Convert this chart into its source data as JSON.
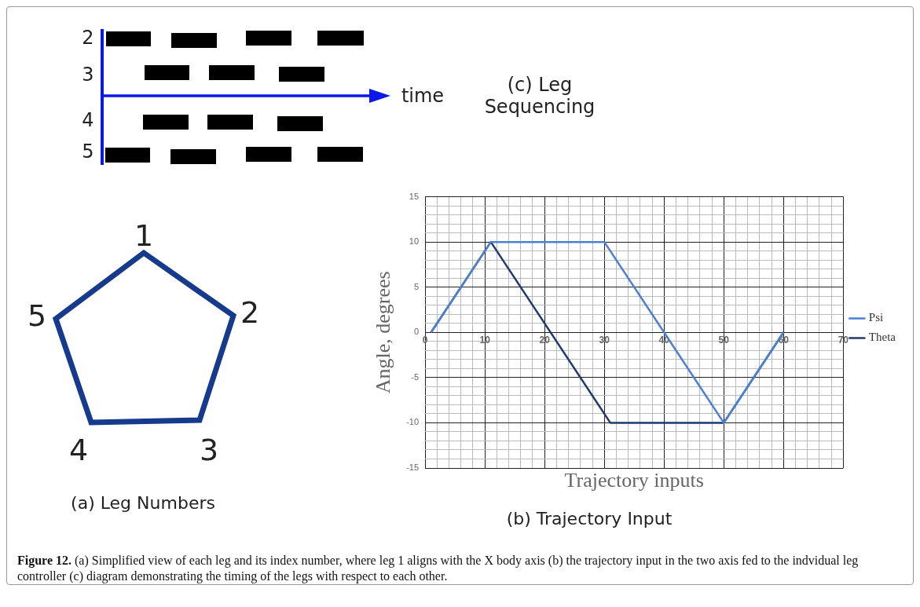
{
  "chart_data": {
    "type": "line",
    "title": "(b) Trajectory Input",
    "xlabel": "Trajectory inputs",
    "ylabel": "Angle, degrees",
    "series": [
      {
        "name": "Psi",
        "color": "#4a80d6",
        "x": [
          1,
          11,
          30,
          40,
          50,
          60
        ],
        "values": [
          0,
          10,
          10,
          0,
          -10,
          0
        ]
      },
      {
        "name": "Theta",
        "color": "#1f3a70",
        "x": [
          1,
          11,
          31,
          50,
          60
        ],
        "values": [
          0,
          10,
          -10,
          -10,
          0
        ]
      }
    ],
    "xlim": [
      0,
      70
    ],
    "ylim": [
      -15,
      15
    ],
    "xticks": [
      0,
      {
        "value": 2,
        "label": null
      },
      {
        "value": 4,
        "label": null
      },
      {
        "value": 6,
        "label": null
      },
      {
        "value": 8,
        "label": null
      },
      10,
      {
        "value": 12,
        "label": null
      },
      {
        "value": 14,
        "label": null
      },
      {
        "value": 16,
        "label": null
      },
      {
        "value": 18,
        "label": null
      },
      20,
      {
        "value": 22,
        "label": null
      },
      {
        "value": 24,
        "label": null
      },
      {
        "value": 26,
        "label": null
      },
      {
        "value": 28,
        "label": null
      },
      30,
      {
        "value": 32,
        "label": null
      },
      {
        "value": 34,
        "label": null
      },
      {
        "value": 36,
        "label": null
      },
      {
        "value": 38,
        "label": null
      },
      40,
      {
        "value": 42,
        "label": null
      },
      {
        "value": 44,
        "label": null
      },
      {
        "value": 46,
        "label": null
      },
      {
        "value": 48,
        "label": null
      },
      50,
      {
        "value": 52,
        "label": null
      },
      {
        "value": 54,
        "label": null
      },
      {
        "value": 56,
        "label": null
      },
      {
        "value": 58,
        "label": null
      },
      60,
      {
        "value": 62,
        "label": null
      },
      {
        "value": 64,
        "label": null
      },
      {
        "value": 66,
        "label": null
      },
      {
        "value": 68,
        "label": null
      },
      70
    ],
    "yticks": [
      -15,
      {
        "value": -14,
        "label": null
      },
      {
        "value": -13,
        "label": null
      },
      {
        "value": -12,
        "label": null
      },
      {
        "value": -11,
        "label": null
      },
      -10,
      {
        "value": -9,
        "label": null
      },
      {
        "value": -8,
        "label": null
      },
      {
        "value": -7,
        "label": null
      },
      {
        "value": -6,
        "label": null
      },
      -5,
      {
        "value": -4,
        "label": null
      },
      {
        "value": -3,
        "label": null
      },
      {
        "value": -2,
        "label": null
      },
      {
        "value": -1,
        "label": null
      },
      0,
      {
        "value": 1,
        "label": null
      },
      {
        "value": 2,
        "label": null
      },
      {
        "value": 3,
        "label": null
      },
      {
        "value": 4,
        "label": null
      },
      5,
      {
        "value": 6,
        "label": null
      },
      {
        "value": 7,
        "label": null
      },
      {
        "value": 8,
        "label": null
      },
      {
        "value": 9,
        "label": null
      },
      10,
      {
        "value": 11,
        "label": null
      },
      {
        "value": 12,
        "label": null
      },
      {
        "value": 13,
        "label": null
      },
      {
        "value": 14,
        "label": null
      },
      15
    ],
    "grid": true,
    "legend": "right",
    "marker": "none",
    "line_style": "solid",
    "annotations": [
      "1",
      "2",
      "3",
      "4",
      "5",
      "(a) Leg Numbers",
      "2",
      "3",
      "4",
      "5",
      "time",
      "(c) Leg Sequencing",
      "Figure 12.",
      "(a) Simplified view of each leg and its index number, where leg 1 aligns with the X body axis (b) the trajectory input in the two axis fed to the indvidual leg controller (c) diagram demonstrating the timing of the legs with respect to each other."
    ]
  }
}
